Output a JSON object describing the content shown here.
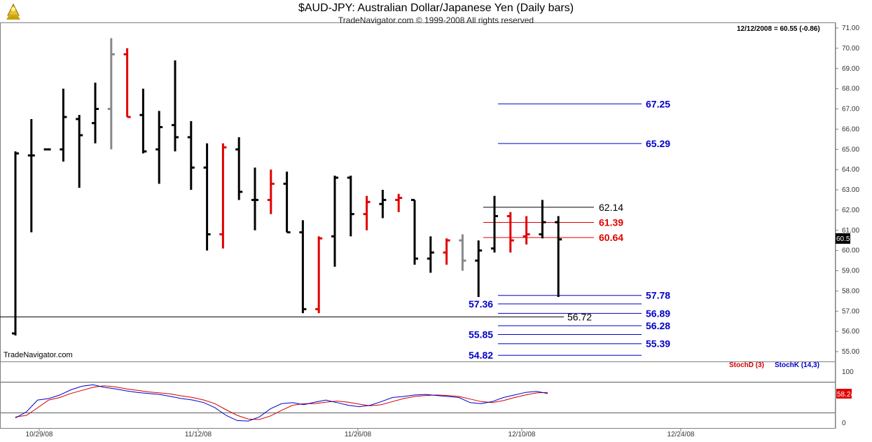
{
  "header": {
    "title": "$AUD-JPY:  Australian Dollar/Japanese Yen  (Daily bars)",
    "subtitle": "TradeNavigator.com © 1999-2008 All rights reserved",
    "last_bar": "12/12/2008 = 60.55 (-0.86)",
    "watermark": "TradeNavigator.com",
    "price_tag": "60.55",
    "stoch_tag": "58.24"
  },
  "indicator_labels": {
    "stoch_d": "StochD (3)",
    "stoch_k": "StochK (14,3)"
  },
  "colors": {
    "up_bar": "#000000",
    "down_bar": "#e00000",
    "neutral_bar": "#888888",
    "level_blue": "#0000c8",
    "level_red": "#e00000",
    "stoch_k": "#0000c8",
    "stoch_d": "#d00000"
  },
  "chart_data": {
    "type": "ohlc",
    "price_axis": {
      "min": 54.5,
      "max": 71.0,
      "ticks": [
        "71.00",
        "70.00",
        "69.00",
        "68.00",
        "67.00",
        "66.00",
        "65.00",
        "64.00",
        "63.00",
        "62.00",
        "61.00",
        "60.00",
        "59.00",
        "58.00",
        "57.00",
        "56.00",
        "55.00"
      ]
    },
    "x_axis": {
      "labels": [
        "10/29/08",
        "11/12/08",
        "11/26/08",
        "12/10/08",
        "12/24/08"
      ]
    },
    "bars": [
      {
        "open": 55.9,
        "high": 64.9,
        "low": 55.8,
        "close": 64.8,
        "color": "black"
      },
      {
        "open": 64.7,
        "high": 66.5,
        "low": 60.9,
        "close": 64.7,
        "color": "black"
      },
      {
        "open": 65.0,
        "high": 65.0,
        "low": 65.0,
        "close": 65.0,
        "color": "black"
      },
      {
        "open": 65.0,
        "high": 68.0,
        "low": 64.4,
        "close": 66.6,
        "color": "black"
      },
      {
        "open": 66.5,
        "high": 66.7,
        "low": 63.1,
        "close": 65.7,
        "color": "black"
      },
      {
        "open": 66.3,
        "high": 68.3,
        "low": 65.3,
        "close": 67.0,
        "color": "black"
      },
      {
        "open": 67.0,
        "high": 70.5,
        "low": 65.0,
        "close": 69.7,
        "color": "gray"
      },
      {
        "open": 69.7,
        "high": 70.0,
        "low": 66.6,
        "close": 66.6,
        "color": "red"
      },
      {
        "open": 66.7,
        "high": 68.0,
        "low": 64.8,
        "close": 64.9,
        "color": "black"
      },
      {
        "open": 65.0,
        "high": 66.9,
        "low": 63.3,
        "close": 66.1,
        "color": "black"
      },
      {
        "open": 66.2,
        "high": 69.4,
        "low": 64.9,
        "close": 65.6,
        "color": "black"
      },
      {
        "open": 65.6,
        "high": 66.4,
        "low": 63.0,
        "close": 64.1,
        "color": "black"
      },
      {
        "open": 64.1,
        "high": 65.3,
        "low": 60.0,
        "close": 60.8,
        "color": "black"
      },
      {
        "open": 60.8,
        "high": 65.3,
        "low": 60.1,
        "close": 65.1,
        "color": "red"
      },
      {
        "open": 65.0,
        "high": 65.6,
        "low": 62.5,
        "close": 62.9,
        "color": "black"
      },
      {
        "open": 62.5,
        "high": 64.1,
        "low": 61.0,
        "close": 62.5,
        "color": "black"
      },
      {
        "open": 62.5,
        "high": 64.0,
        "low": 61.8,
        "close": 63.3,
        "color": "red"
      },
      {
        "open": 63.3,
        "high": 63.9,
        "low": 60.9,
        "close": 60.9,
        "color": "black"
      },
      {
        "open": 60.9,
        "high": 61.5,
        "low": 56.9,
        "close": 57.1,
        "color": "black"
      },
      {
        "open": 57.1,
        "high": 60.7,
        "low": 56.9,
        "close": 60.6,
        "color": "red"
      },
      {
        "open": 60.7,
        "high": 63.7,
        "low": 59.2,
        "close": 63.6,
        "color": "black"
      },
      {
        "open": 63.6,
        "high": 63.7,
        "low": 60.7,
        "close": 61.8,
        "color": "black"
      },
      {
        "open": 61.8,
        "high": 62.7,
        "low": 61.0,
        "close": 62.4,
        "color": "red"
      },
      {
        "open": 62.3,
        "high": 63.0,
        "low": 61.6,
        "close": 62.5,
        "color": "black"
      },
      {
        "open": 62.5,
        "high": 62.8,
        "low": 61.9,
        "close": 62.6,
        "color": "red"
      },
      {
        "open": 62.5,
        "high": 62.5,
        "low": 59.3,
        "close": 59.6,
        "color": "black"
      },
      {
        "open": 59.6,
        "high": 60.7,
        "low": 58.9,
        "close": 59.9,
        "color": "black"
      },
      {
        "open": 59.9,
        "high": 60.6,
        "low": 59.3,
        "close": 60.5,
        "color": "red"
      },
      {
        "open": 60.5,
        "high": 60.8,
        "low": 59.0,
        "close": 59.5,
        "color": "gray"
      },
      {
        "open": 59.5,
        "high": 60.5,
        "low": 57.7,
        "close": 60.0,
        "color": "black"
      },
      {
        "open": 60.1,
        "high": 62.7,
        "low": 59.9,
        "close": 61.7,
        "color": "black"
      },
      {
        "open": 61.7,
        "high": 61.9,
        "low": 59.9,
        "close": 60.5,
        "color": "red"
      },
      {
        "open": 60.7,
        "high": 61.7,
        "low": 60.3,
        "close": 60.8,
        "color": "red"
      },
      {
        "open": 60.8,
        "high": 62.5,
        "low": 60.6,
        "close": 61.4,
        "color": "black"
      },
      {
        "open": 61.4,
        "high": 61.7,
        "low": 57.7,
        "close": 60.55,
        "color": "black"
      }
    ],
    "levels": [
      {
        "value": 67.25,
        "label": "67.25",
        "color": "blue",
        "side": "right"
      },
      {
        "value": 65.29,
        "label": "65.29",
        "color": "blue",
        "side": "right"
      },
      {
        "value": 62.14,
        "label": "62.14",
        "color": "black",
        "side": "right"
      },
      {
        "value": 61.39,
        "label": "61.39",
        "color": "red",
        "side": "right"
      },
      {
        "value": 60.64,
        "label": "60.64",
        "color": "red",
        "side": "right"
      },
      {
        "value": 57.78,
        "label": "57.78",
        "color": "blue",
        "side": "right"
      },
      {
        "value": 57.36,
        "label": "57.36",
        "color": "blue",
        "side": "left"
      },
      {
        "value": 56.89,
        "label": "56.89",
        "color": "blue",
        "side": "right"
      },
      {
        "value": 56.72,
        "label": "56.72",
        "color": "black",
        "side": "mid"
      },
      {
        "value": 56.28,
        "label": "56.28",
        "color": "blue",
        "side": "right"
      },
      {
        "value": 55.85,
        "label": "55.85",
        "color": "blue",
        "side": "left"
      },
      {
        "value": 55.39,
        "label": "55.39",
        "color": "blue",
        "side": "right"
      },
      {
        "value": 54.82,
        "label": "54.82",
        "color": "blue",
        "side": "left"
      }
    ],
    "stochastic": {
      "axis": {
        "min": 0,
        "max": 100,
        "ticks": [
          "100",
          "0"
        ],
        "bands": [
          80,
          20
        ]
      },
      "stoch_k": [
        10,
        22,
        45,
        48,
        55,
        65,
        72,
        75,
        70,
        67,
        63,
        60,
        58,
        56,
        52,
        48,
        45,
        40,
        30,
        15,
        5,
        4,
        12,
        28,
        38,
        40,
        36,
        41,
        45,
        40,
        35,
        32,
        35,
        42,
        50,
        52,
        55,
        56,
        54,
        52,
        50,
        40,
        38,
        42,
        50,
        55,
        60,
        62,
        58
      ],
      "stoch_d": [
        12,
        15,
        30,
        45,
        50,
        58,
        64,
        70,
        73,
        71,
        67,
        64,
        61,
        59,
        57,
        53,
        50,
        45,
        38,
        26,
        15,
        8,
        7,
        14,
        25,
        35,
        38,
        38,
        41,
        43,
        41,
        37,
        34,
        36,
        42,
        48,
        52,
        54,
        55,
        54,
        52,
        47,
        42,
        40,
        44,
        50,
        55,
        59,
        60
      ]
    }
  }
}
